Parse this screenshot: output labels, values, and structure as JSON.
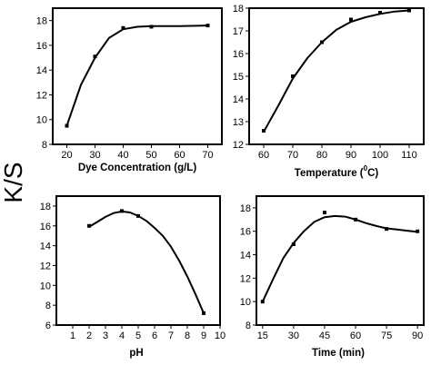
{
  "y_label": "K/S",
  "chart_data": [
    {
      "type": "line",
      "xlabel": "Dye Concentration (g/L)",
      "xlim": [
        15,
        75
      ],
      "ylim": [
        8,
        19
      ],
      "x_ticks": [
        20,
        30,
        40,
        50,
        60,
        70
      ],
      "y_ticks": [
        8,
        10,
        12,
        14,
        16,
        18
      ],
      "points": [
        [
          20,
          9.5
        ],
        [
          30,
          15.1
        ],
        [
          40,
          17.4
        ],
        [
          50,
          17.5
        ],
        [
          70,
          17.6
        ]
      ],
      "curve": [
        [
          20,
          9.5
        ],
        [
          25,
          12.8
        ],
        [
          30,
          15.0
        ],
        [
          35,
          16.6
        ],
        [
          40,
          17.3
        ],
        [
          45,
          17.5
        ],
        [
          50,
          17.55
        ],
        [
          60,
          17.55
        ],
        [
          70,
          17.6
        ]
      ]
    },
    {
      "type": "line",
      "xlabel": "Temperature (0C)",
      "xlabel_parts": {
        "before": "Temperature (",
        "sup": "0",
        "after": "C)"
      },
      "xlim": [
        55,
        115
      ],
      "ylim": [
        12,
        18
      ],
      "x_ticks": [
        60,
        70,
        80,
        90,
        100,
        110
      ],
      "y_ticks": [
        12,
        13,
        14,
        15,
        16,
        17,
        18
      ],
      "points": [
        [
          60,
          12.6
        ],
        [
          70,
          15.0
        ],
        [
          80,
          16.5
        ],
        [
          90,
          17.5
        ],
        [
          100,
          17.8
        ],
        [
          110,
          17.9
        ]
      ],
      "curve": [
        [
          60,
          12.55
        ],
        [
          65,
          13.7
        ],
        [
          70,
          14.9
        ],
        [
          75,
          15.8
        ],
        [
          80,
          16.5
        ],
        [
          85,
          17.05
        ],
        [
          90,
          17.4
        ],
        [
          95,
          17.6
        ],
        [
          100,
          17.75
        ],
        [
          105,
          17.85
        ],
        [
          110,
          17.9
        ]
      ]
    },
    {
      "type": "line",
      "xlabel": "pH",
      "xlim": [
        0,
        10
      ],
      "ylim": [
        6,
        19
      ],
      "x_ticks": [
        1,
        2,
        3,
        4,
        5,
        6,
        7,
        8,
        9,
        10
      ],
      "y_ticks": [
        6,
        8,
        10,
        12,
        14,
        16,
        18
      ],
      "points": [
        [
          2,
          16.0
        ],
        [
          4,
          17.5
        ],
        [
          5,
          17.0
        ],
        [
          9,
          7.2
        ]
      ],
      "curve": [
        [
          2,
          15.9
        ],
        [
          2.5,
          16.4
        ],
        [
          3,
          16.9
        ],
        [
          3.5,
          17.3
        ],
        [
          4,
          17.45
        ],
        [
          4.5,
          17.35
        ],
        [
          5,
          17.0
        ],
        [
          5.5,
          16.5
        ],
        [
          6,
          15.8
        ],
        [
          6.5,
          15.0
        ],
        [
          7,
          13.9
        ],
        [
          7.5,
          12.5
        ],
        [
          8,
          10.9
        ],
        [
          8.5,
          9.1
        ],
        [
          9,
          7.2
        ]
      ]
    },
    {
      "type": "line",
      "xlabel": "Time (min)",
      "xlim": [
        12,
        93
      ],
      "ylim": [
        8,
        19
      ],
      "x_ticks": [
        15,
        30,
        45,
        60,
        75,
        90
      ],
      "y_ticks": [
        8,
        10,
        12,
        14,
        16,
        18
      ],
      "points": [
        [
          15,
          10.0
        ],
        [
          30,
          14.9
        ],
        [
          45,
          17.6
        ],
        [
          60,
          17.0
        ],
        [
          75,
          16.2
        ],
        [
          90,
          16.0
        ]
      ],
      "curve": [
        [
          15,
          10.0
        ],
        [
          20,
          11.9
        ],
        [
          25,
          13.7
        ],
        [
          30,
          15.0
        ],
        [
          35,
          16.0
        ],
        [
          40,
          16.8
        ],
        [
          45,
          17.2
        ],
        [
          50,
          17.3
        ],
        [
          55,
          17.25
        ],
        [
          60,
          17.0
        ],
        [
          65,
          16.7
        ],
        [
          70,
          16.45
        ],
        [
          75,
          16.25
        ],
        [
          80,
          16.15
        ],
        [
          85,
          16.05
        ],
        [
          90,
          15.95
        ]
      ]
    }
  ]
}
